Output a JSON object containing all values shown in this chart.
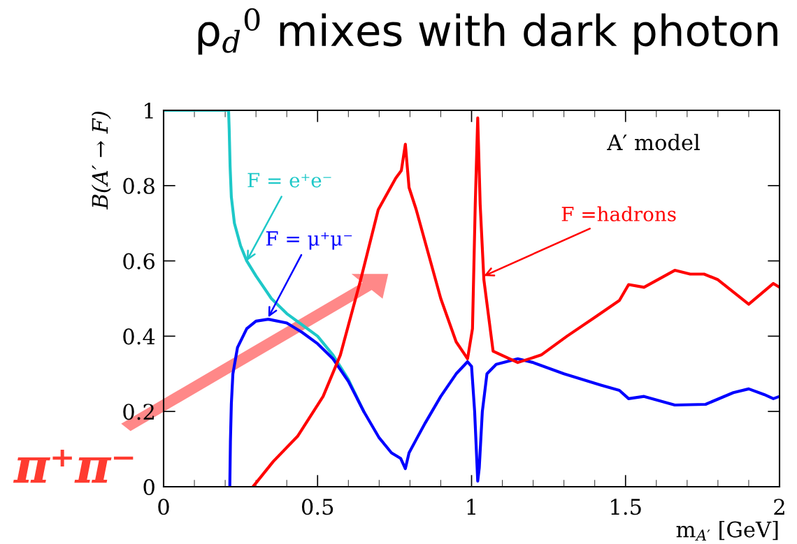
{
  "chart_data": {
    "type": "line",
    "title": "ρ$_{d}$$^{0}$ mixes with dark photon",
    "xlabel": "m$_{A′}$ [GeV]",
    "ylabel": "B(A′ → F)",
    "xlim": [
      0,
      2
    ],
    "ylim": [
      0,
      1
    ],
    "xticks": [
      0,
      0.5,
      1,
      1.5,
      2
    ],
    "yticks": [
      0,
      0.2,
      0.4,
      0.6,
      0.8,
      1
    ],
    "grid": false,
    "legend": false,
    "line_style": "solid",
    "marker": "none",
    "series": [
      {
        "color": "#1ec8c8",
        "x": [
          0,
          0.211,
          0.213,
          0.216,
          0.22,
          0.23,
          0.25,
          0.27,
          0.3,
          0.35,
          0.4,
          0.45,
          0.5,
          0.55,
          0.6,
          0.65
        ],
        "values": [
          1,
          1,
          0.95,
          0.85,
          0.77,
          0.7,
          0.64,
          0.6,
          0.56,
          0.5,
          0.46,
          0.43,
          0.4,
          0.35,
          0.285,
          0.2
        ]
      },
      {
        "color": "#0000ff",
        "x": [
          0.215,
          0.217,
          0.22,
          0.225,
          0.24,
          0.27,
          0.3,
          0.34,
          0.4,
          0.45,
          0.5,
          0.55,
          0.6,
          0.65,
          0.7,
          0.74,
          0.77,
          0.785,
          0.797,
          0.82,
          0.85,
          0.9,
          0.95,
          0.987,
          1.0,
          1.01,
          1.02,
          1.025,
          1.035,
          1.05,
          1.08,
          1.15,
          1.2,
          1.3,
          1.42,
          1.48,
          1.51,
          1.56,
          1.66,
          1.76,
          1.85,
          1.9,
          1.95,
          1.98,
          2.0
        ],
        "values": [
          0,
          0.12,
          0.22,
          0.3,
          0.37,
          0.42,
          0.44,
          0.445,
          0.435,
          0.41,
          0.38,
          0.34,
          0.28,
          0.2,
          0.13,
          0.09,
          0.075,
          0.048,
          0.09,
          0.125,
          0.17,
          0.24,
          0.3,
          0.332,
          0.32,
          0.2,
          0.015,
          0.05,
          0.2,
          0.3,
          0.325,
          0.34,
          0.33,
          0.3,
          0.27,
          0.256,
          0.234,
          0.24,
          0.217,
          0.219,
          0.25,
          0.26,
          0.245,
          0.234,
          0.24
        ]
      },
      {
        "color": "#ff0000",
        "x": [
          0.29,
          0.3,
          0.356,
          0.435,
          0.518,
          0.574,
          0.64,
          0.697,
          0.754,
          0.772,
          0.785,
          0.797,
          0.82,
          0.9,
          0.95,
          0.987,
          1.003,
          1.012,
          1.02,
          1.028,
          1.04,
          1.07,
          1.15,
          1.226,
          1.31,
          1.4,
          1.48,
          1.51,
          1.56,
          1.66,
          1.71,
          1.755,
          1.8,
          1.9,
          1.98,
          2.0
        ],
        "values": [
          0,
          0.01,
          0.067,
          0.134,
          0.24,
          0.35,
          0.55,
          0.736,
          0.82,
          0.84,
          0.91,
          0.795,
          0.737,
          0.5,
          0.385,
          0.34,
          0.42,
          0.75,
          0.98,
          0.75,
          0.55,
          0.36,
          0.33,
          0.35,
          0.4,
          0.45,
          0.495,
          0.537,
          0.53,
          0.575,
          0.565,
          0.565,
          0.55,
          0.485,
          0.54,
          0.53
        ]
      }
    ],
    "annotations": [
      {
        "text": "F = e⁺e⁻",
        "x": 0.27,
        "y": 0.6
      },
      {
        "text": "F = μ⁺μ⁻",
        "x": 0.34,
        "y": 0.45
      },
      {
        "text": "F =hadrons",
        "x": 1.04,
        "y": 0.56
      },
      "A′ model",
      "π⁺π⁻"
    ]
  }
}
